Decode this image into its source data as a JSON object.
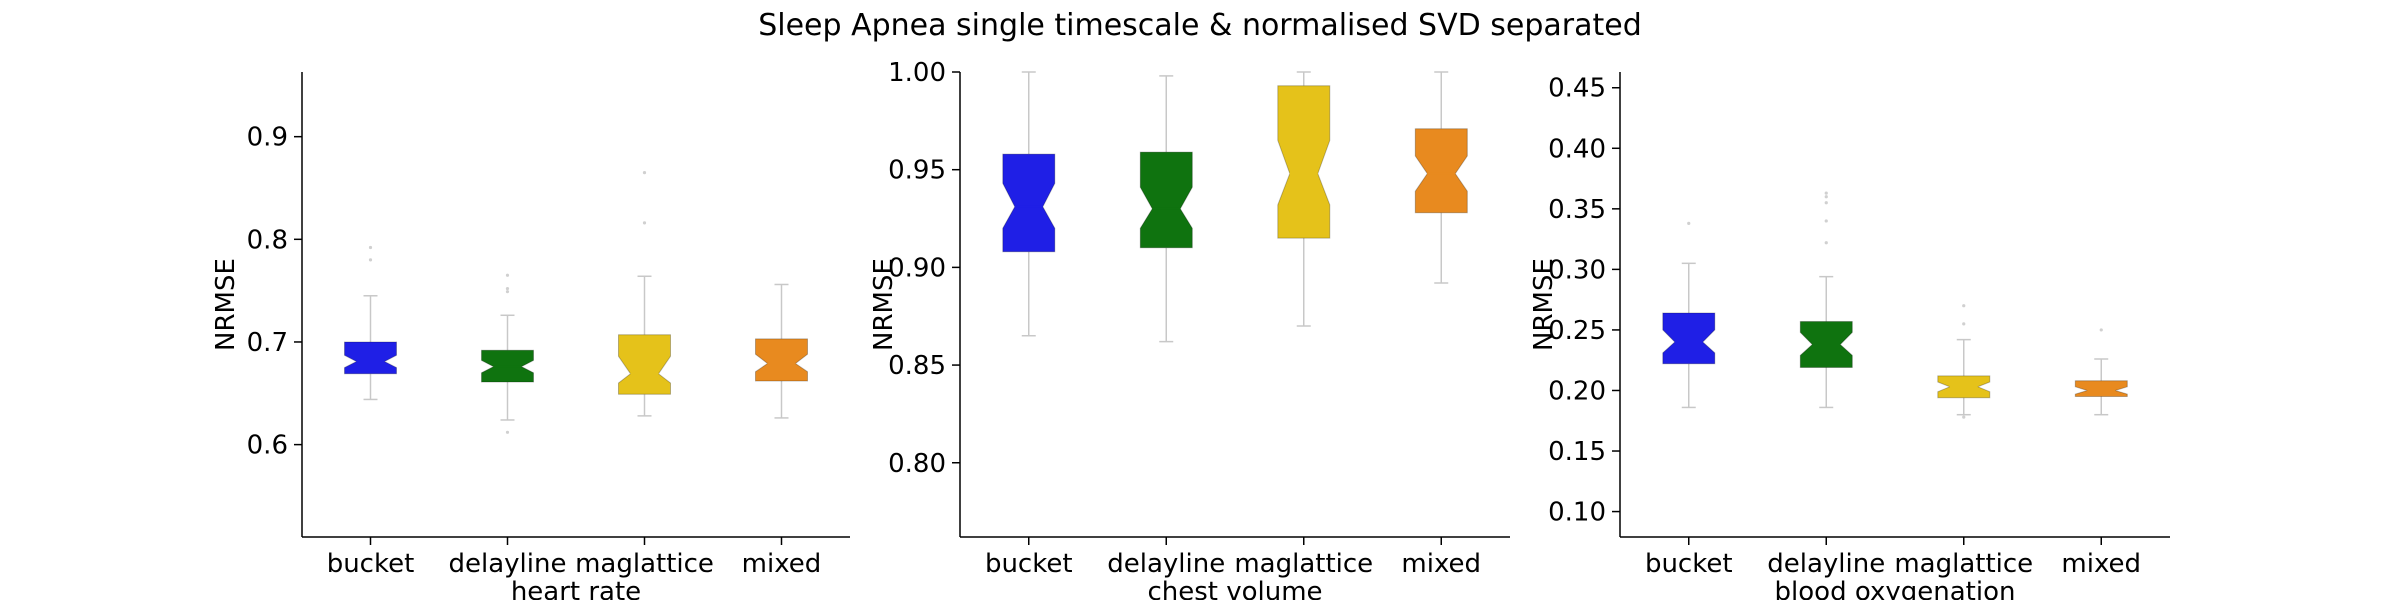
{
  "title": "Sleep Apnea single timescale & normalised SVD separated",
  "colors": {
    "bucket": "#1f1fe6",
    "delayline": "#0f730f",
    "maglattice": "#e5c21a",
    "mixed": "#e88a1f",
    "whisker": "#c8c8c8",
    "axis": "#000000"
  },
  "chart_data": [
    {
      "type": "box",
      "title": "",
      "xlabel": "heart rate",
      "ylabel": "NRMSE",
      "ylim": [
        0.51,
        0.963
      ],
      "yticks": [
        0.6,
        0.7,
        0.8,
        0.9
      ],
      "ytick_labels": [
        "0.6",
        "0.7",
        "0.8",
        "0.9"
      ],
      "categories": [
        "bucket",
        "delayline",
        "maglattice",
        "mixed"
      ],
      "boxes": [
        {
          "name": "bucket",
          "whisker_low": 0.644,
          "q1": 0.669,
          "median": 0.681,
          "q3": 0.7,
          "whisker_high": 0.745,
          "notch_low": 0.675,
          "notch_high": 0.687,
          "outliers": [
            0.78,
            0.792
          ]
        },
        {
          "name": "delayline",
          "whisker_low": 0.624,
          "q1": 0.661,
          "median": 0.676,
          "q3": 0.692,
          "whisker_high": 0.726,
          "notch_low": 0.67,
          "notch_high": 0.682,
          "outliers": [
            0.612,
            0.749,
            0.752,
            0.765
          ]
        },
        {
          "name": "maglattice",
          "whisker_low": 0.628,
          "q1": 0.649,
          "median": 0.669,
          "q3": 0.707,
          "whisker_high": 0.764,
          "notch_low": 0.66,
          "notch_high": 0.686,
          "outliers": [
            0.816,
            0.865
          ]
        },
        {
          "name": "mixed",
          "whisker_low": 0.626,
          "q1": 0.662,
          "median": 0.679,
          "q3": 0.703,
          "whisker_high": 0.756,
          "notch_low": 0.671,
          "notch_high": 0.688,
          "outliers": []
        }
      ]
    },
    {
      "type": "box",
      "title": "",
      "xlabel": "chest volume",
      "ylabel": "NRMSE",
      "ylim": [
        0.762,
        1.0
      ],
      "yticks": [
        0.8,
        0.85,
        0.9,
        0.95,
        1.0
      ],
      "ytick_labels": [
        "0.80",
        "0.85",
        "0.90",
        "0.95",
        "1.00"
      ],
      "categories": [
        "bucket",
        "delayline",
        "maglattice",
        "mixed"
      ],
      "boxes": [
        {
          "name": "bucket",
          "whisker_low": 0.865,
          "q1": 0.908,
          "median": 0.931,
          "q3": 0.958,
          "whisker_high": 1.0,
          "notch_low": 0.92,
          "notch_high": 0.943,
          "outliers": []
        },
        {
          "name": "delayline",
          "whisker_low": 0.862,
          "q1": 0.91,
          "median": 0.93,
          "q3": 0.959,
          "whisker_high": 0.998,
          "notch_low": 0.92,
          "notch_high": 0.941,
          "outliers": []
        },
        {
          "name": "maglattice",
          "whisker_low": 0.87,
          "q1": 0.915,
          "median": 0.948,
          "q3": 0.993,
          "whisker_high": 1.0,
          "notch_low": 0.932,
          "notch_high": 0.965,
          "outliers": []
        },
        {
          "name": "mixed",
          "whisker_low": 0.892,
          "q1": 0.928,
          "median": 0.948,
          "q3": 0.971,
          "whisker_high": 1.0,
          "notch_low": 0.939,
          "notch_high": 0.957,
          "outliers": []
        }
      ]
    },
    {
      "type": "box",
      "title": "",
      "xlabel": "blood oxygenation",
      "ylabel": "NRMSE",
      "ylim": [
        0.079,
        0.463
      ],
      "yticks": [
        0.1,
        0.15,
        0.2,
        0.25,
        0.3,
        0.35,
        0.4,
        0.45
      ],
      "ytick_labels": [
        "0.10",
        "0.15",
        "0.20",
        "0.25",
        "0.30",
        "0.35",
        "0.40",
        "0.45"
      ],
      "categories": [
        "bucket",
        "delayline",
        "maglattice",
        "mixed"
      ],
      "boxes": [
        {
          "name": "bucket",
          "whisker_low": 0.186,
          "q1": 0.222,
          "median": 0.24,
          "q3": 0.264,
          "whisker_high": 0.305,
          "notch_low": 0.231,
          "notch_high": 0.25,
          "outliers": [
            0.338
          ]
        },
        {
          "name": "delayline",
          "whisker_low": 0.186,
          "q1": 0.219,
          "median": 0.238,
          "q3": 0.257,
          "whisker_high": 0.294,
          "notch_low": 0.229,
          "notch_high": 0.248,
          "outliers": [
            0.322,
            0.34,
            0.355,
            0.36,
            0.363
          ]
        },
        {
          "name": "maglattice",
          "whisker_low": 0.18,
          "q1": 0.194,
          "median": 0.203,
          "q3": 0.212,
          "whisker_high": 0.242,
          "notch_low": 0.199,
          "notch_high": 0.207,
          "outliers": [
            0.178,
            0.255,
            0.27
          ]
        },
        {
          "name": "mixed",
          "whisker_low": 0.18,
          "q1": 0.195,
          "median": 0.2,
          "q3": 0.208,
          "whisker_high": 0.226,
          "notch_low": 0.197,
          "notch_high": 0.203,
          "outliers": [
            0.25
          ]
        }
      ]
    }
  ]
}
